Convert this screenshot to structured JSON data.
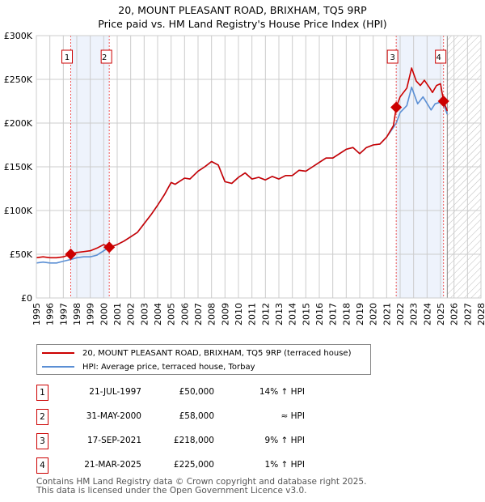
{
  "title": [
    "20, MOUNT PLEASANT ROAD, BRIXHAM, TQ5 9RP",
    "Price paid vs. HM Land Registry's House Price Index (HPI)"
  ],
  "colors": {
    "property": "#cc0000",
    "hpi": "#5b8fd4",
    "shade": "#eef3fc"
  },
  "chart_data": {
    "type": "line",
    "xlim": [
      1995,
      2028
    ],
    "ylim": [
      0,
      300000
    ],
    "y_ticks": [
      {
        "v": 0,
        "label": "£0"
      },
      {
        "v": 50000,
        "label": "£50K"
      },
      {
        "v": 100000,
        "label": "£100K"
      },
      {
        "v": 150000,
        "label": "£150K"
      },
      {
        "v": 200000,
        "label": "£200K"
      },
      {
        "v": 250000,
        "label": "£250K"
      },
      {
        "v": 300000,
        "label": "£300K"
      }
    ],
    "x_ticks": [
      "1995",
      "1996",
      "1997",
      "1998",
      "1999",
      "2000",
      "2001",
      "2002",
      "2003",
      "2004",
      "2005",
      "2006",
      "2007",
      "2008",
      "2009",
      "2010",
      "2011",
      "2012",
      "2013",
      "2014",
      "2015",
      "2016",
      "2017",
      "2018",
      "2019",
      "2020",
      "2021",
      "2022",
      "2023",
      "2024",
      "2025",
      "2026",
      "2027",
      "2028"
    ],
    "series": [
      {
        "name": "20, MOUNT PLEASANT ROAD, BRIXHAM, TQ5 9RP (terraced house)",
        "color": "#cc0000",
        "x": [
          1995,
          1995.5,
          1996,
          1996.5,
          1997,
          1997.55,
          1998,
          1998.5,
          1999,
          1999.5,
          2000,
          2000.41,
          2001,
          2001.5,
          2002,
          2002.5,
          2003,
          2003.5,
          2004,
          2004.5,
          2005,
          2005.3,
          2006,
          2006.4,
          2007,
          2007.5,
          2008,
          2008.5,
          2009,
          2009.5,
          2010,
          2010.5,
          2011,
          2011.5,
          2012,
          2012.5,
          2013,
          2013.5,
          2014,
          2014.5,
          2015,
          2015.5,
          2016,
          2016.5,
          2017,
          2017.5,
          2018,
          2018.5,
          2019,
          2019.5,
          2020,
          2020.5,
          2021,
          2021.5,
          2021.71,
          2022,
          2022.5,
          2022.85,
          2023.2,
          2023.5,
          2023.8,
          2024.2,
          2024.4,
          2024.7,
          2025,
          2025.22,
          2025.5
        ],
        "y": [
          46000,
          47000,
          46000,
          46000,
          47000,
          50000,
          52000,
          53000,
          54000,
          57000,
          61000,
          58000,
          61000,
          65000,
          70000,
          75000,
          85000,
          95000,
          106000,
          118000,
          132000,
          130000,
          137000,
          136000,
          145000,
          150000,
          156000,
          152000,
          133000,
          131000,
          138000,
          143000,
          136000,
          138000,
          135000,
          139000,
          136000,
          140000,
          140000,
          146000,
          145000,
          150000,
          155000,
          160000,
          160000,
          165000,
          170000,
          172000,
          165000,
          172000,
          175000,
          176000,
          184000,
          197000,
          218000,
          230000,
          240000,
          263000,
          248000,
          243000,
          249000,
          240000,
          235000,
          243000,
          245000,
          225000,
          214000
        ]
      },
      {
        "name": "HPI: Average price, terraced house, Torbay",
        "color": "#5b8fd4",
        "x": [
          1995,
          1995.5,
          1996,
          1996.5,
          1997,
          1997.55,
          1998,
          1998.5,
          1999,
          1999.5,
          2000,
          2000.41,
          2001,
          2001.5,
          2002,
          2002.5,
          2003,
          2003.5,
          2004,
          2004.5,
          2005,
          2005.3,
          2006,
          2006.4,
          2007,
          2007.5,
          2008,
          2008.5,
          2009,
          2009.5,
          2010,
          2010.5,
          2011,
          2011.5,
          2012,
          2012.5,
          2013,
          2013.5,
          2014,
          2014.5,
          2015,
          2015.5,
          2016,
          2016.5,
          2017,
          2017.5,
          2018,
          2018.5,
          2019,
          2019.5,
          2020,
          2020.5,
          2021,
          2021.5,
          2021.71,
          2022,
          2022.5,
          2022.85,
          2023.3,
          2023.7,
          2024.3,
          2024.6,
          2025,
          2025.22,
          2025.5
        ],
        "y": [
          40000,
          41000,
          40000,
          40000,
          42000,
          44000,
          46000,
          47000,
          47000,
          49000,
          54000,
          58000,
          61000,
          65000,
          70000,
          75000,
          85000,
          95000,
          106000,
          118000,
          132000,
          130000,
          137000,
          136000,
          145000,
          150000,
          156000,
          152000,
          133000,
          131000,
          138000,
          143000,
          136000,
          138000,
          135000,
          139000,
          136000,
          140000,
          140000,
          146000,
          145000,
          150000,
          155000,
          160000,
          160000,
          165000,
          170000,
          172000,
          165000,
          172000,
          175000,
          176000,
          184000,
          195000,
          200000,
          212000,
          220000,
          241000,
          222000,
          230000,
          215000,
          222000,
          224000,
          222000,
          210000
        ]
      }
    ],
    "sales": [
      {
        "n": "1",
        "x": 1997.55,
        "y": 50000,
        "date": "21-JUL-1997",
        "price": "£50,000",
        "hpi": "14% ↑ HPI"
      },
      {
        "n": "2",
        "x": 2000.41,
        "y": 58000,
        "date": "31-MAY-2000",
        "price": "£58,000",
        "hpi": "≈ HPI"
      },
      {
        "n": "3",
        "x": 2021.71,
        "y": 218000,
        "date": "17-SEP-2021",
        "price": "£218,000",
        "hpi": "9% ↑ HPI"
      },
      {
        "n": "4",
        "x": 2025.22,
        "y": 225000,
        "date": "21-MAR-2025",
        "price": "£225,000",
        "hpi": "1% ↑ HPI"
      }
    ],
    "forecast_start": 2025.5
  },
  "footer": [
    "Contains HM Land Registry data © Crown copyright and database right 2025.",
    "This data is licensed under the Open Government Licence v3.0."
  ]
}
